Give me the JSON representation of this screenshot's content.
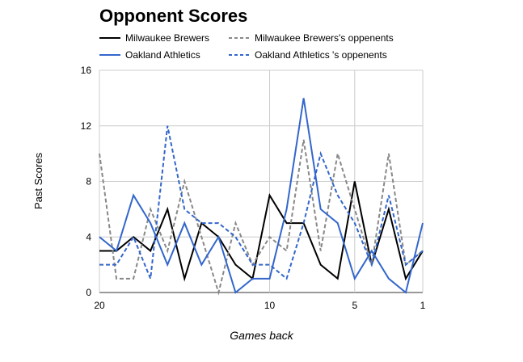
{
  "chart_data": {
    "type": "line",
    "title": "Opponent Scores",
    "xlabel": "Games back",
    "ylabel": "Past Scores",
    "x": [
      20,
      19,
      18,
      17,
      16,
      15,
      14,
      13,
      12,
      11,
      10,
      9,
      8,
      7,
      6,
      5,
      4,
      3,
      2,
      1
    ],
    "x_ticks": [
      "20",
      "10",
      "5",
      "1"
    ],
    "x_tick_values": [
      20,
      10,
      5,
      1
    ],
    "y_ticks": [
      "0",
      "4",
      "8",
      "12",
      "16"
    ],
    "y_tick_values": [
      0,
      4,
      8,
      12,
      16
    ],
    "ylim": [
      0,
      16
    ],
    "xlim": [
      20,
      1
    ],
    "x_reversed": true,
    "grid": true,
    "legend_position": "top",
    "series": [
      {
        "name": "Milwaukee Brewers",
        "color": "#000000",
        "dash": "solid",
        "values": [
          3,
          3,
          4,
          3,
          6,
          1,
          5,
          4,
          2,
          1,
          7,
          5,
          5,
          2,
          1,
          8,
          2,
          6,
          1,
          3
        ]
      },
      {
        "name": "Milwaukee Brewers's oppenents",
        "color": "#888888",
        "dash": "dashed",
        "values": [
          10,
          1,
          1,
          6,
          3,
          8,
          4,
          0,
          5,
          2,
          4,
          3,
          11,
          3,
          10,
          6,
          2,
          10,
          2,
          3
        ]
      },
      {
        "name": "Oakland Athletics",
        "color": "#3366cc",
        "dash": "solid",
        "values": [
          4,
          3,
          7,
          5,
          2,
          5,
          2,
          4,
          0,
          1,
          1,
          6,
          14,
          6,
          5,
          1,
          3,
          1,
          0,
          5
        ]
      },
      {
        "name": "Oakland Athletics 's oppenents",
        "color": "#3366cc",
        "dash": "dashed",
        "values": [
          2,
          2,
          4,
          1,
          12,
          6,
          5,
          5,
          4,
          2,
          2,
          1,
          5,
          10,
          7,
          5,
          2,
          7,
          2,
          3
        ]
      }
    ]
  }
}
